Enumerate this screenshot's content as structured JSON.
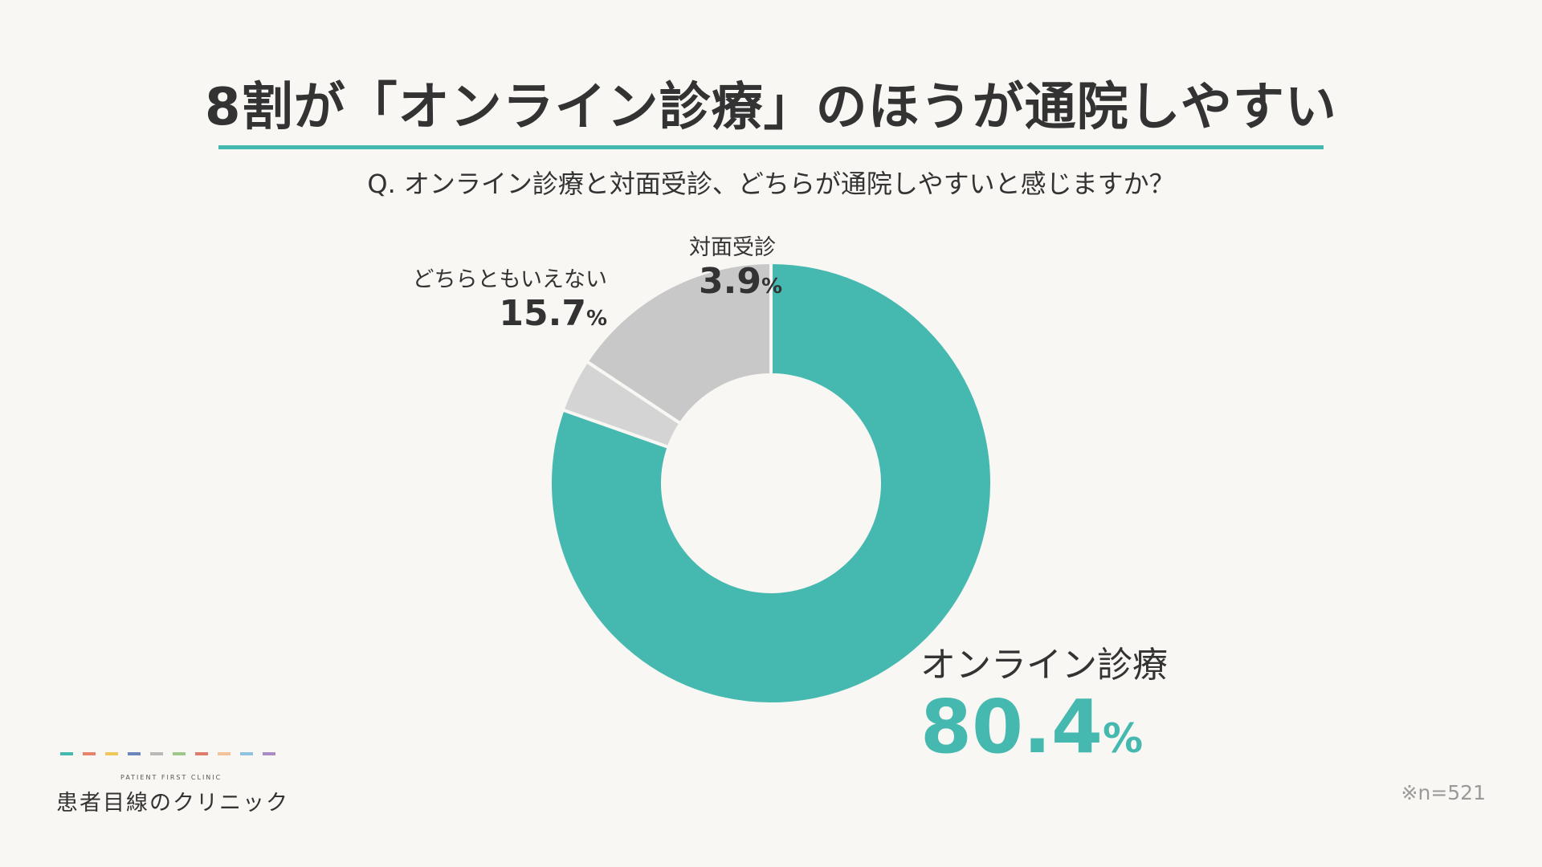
{
  "title": "8割が「オンライン診療」のほうが通院しやすい",
  "question": "Q. オンライン診療と対面受診、どちらが通院しやすいと感じますか？",
  "chart_data": {
    "type": "pie",
    "variant": "donut",
    "categories": [
      "オンライン診療",
      "対面受診",
      "どちらともいえない"
    ],
    "values": [
      80.4,
      3.9,
      15.7
    ],
    "value_labels": [
      "80.4",
      "3.9",
      "15.7"
    ],
    "unit": "%",
    "colors": [
      "#45b8b0",
      "#d4d4d4",
      "#c8c8c8"
    ]
  },
  "note": "※n=521",
  "logo": {
    "subtitle": "PATIENT FIRST CLINIC",
    "name": "患者目線のクリニック",
    "dash_colors": [
      "#45b8b0",
      "#e8836b",
      "#f0c85a",
      "#6b86b8",
      "#b9b9b9",
      "#9cc98a",
      "#e07a6a",
      "#f2c29a",
      "#8ec3df",
      "#a98cc4"
    ]
  }
}
